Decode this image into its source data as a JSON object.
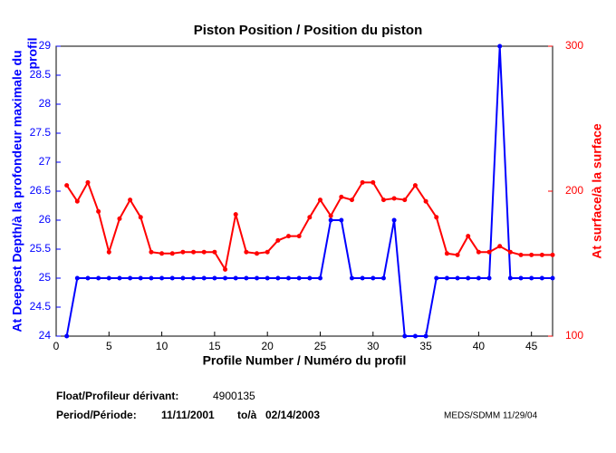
{
  "chart_data": {
    "type": "line",
    "title": "Piston Position / Position du piston",
    "xlabel": "Profile Number / Numéro du profil",
    "ylabel": [
      "At Deepest Depth/à la profondeur maximale du",
      "profil"
    ],
    "y2label": "At surface/à la surface",
    "x": [
      1,
      2,
      3,
      4,
      5,
      6,
      7,
      8,
      9,
      10,
      11,
      12,
      13,
      14,
      15,
      16,
      17,
      18,
      19,
      20,
      21,
      22,
      23,
      24,
      25,
      26,
      27,
      28,
      29,
      30,
      31,
      32,
      33,
      34,
      35,
      36,
      37,
      38,
      39,
      40,
      41,
      42,
      43,
      44,
      45,
      46,
      47
    ],
    "series": [
      {
        "color": "#0000ff",
        "values": [
          24,
          25,
          25,
          25,
          25,
          25,
          25,
          25,
          25,
          25,
          25,
          25,
          25,
          25,
          25,
          25,
          25,
          25,
          25,
          25,
          25,
          25,
          25,
          25,
          25,
          26,
          26,
          25,
          25,
          25,
          25,
          26,
          24,
          24,
          24,
          25,
          25,
          25,
          25,
          25,
          25,
          29,
          25,
          25,
          25,
          25,
          25
        ]
      },
      {
        "color": "#ff0000",
        "axis": "y2",
        "values": [
          204,
          193,
          206,
          186,
          158,
          181,
          194,
          182,
          158,
          157,
          157,
          158,
          158,
          158,
          158,
          146,
          184,
          158,
          157,
          158,
          166,
          169,
          169,
          182,
          194,
          183,
          196,
          194,
          206,
          206,
          194,
          195,
          194,
          204,
          193,
          182,
          157,
          156,
          169,
          158,
          158,
          162,
          158,
          156,
          156,
          156,
          156
        ]
      }
    ],
    "xlim": [
      0,
      47
    ],
    "xticks": [
      0,
      5,
      10,
      15,
      20,
      25,
      30,
      35,
      40,
      45
    ],
    "ylim": [
      24,
      29
    ],
    "yticks": [
      24,
      24.5,
      25,
      25.5,
      26,
      26.5,
      27,
      27.5,
      28,
      28.5,
      29
    ],
    "y2lim": [
      100,
      300
    ],
    "y2ticks": [
      100,
      200,
      300
    ],
    "footer": {
      "float_label": "Float/Profileur dérivant:",
      "float_id": "4900135",
      "period_label": "Period/Période:",
      "start": "11/11/2001",
      "to": "to/à",
      "end": "02/14/2003",
      "credit": "MEDS/SDMM  11/29/04"
    }
  }
}
